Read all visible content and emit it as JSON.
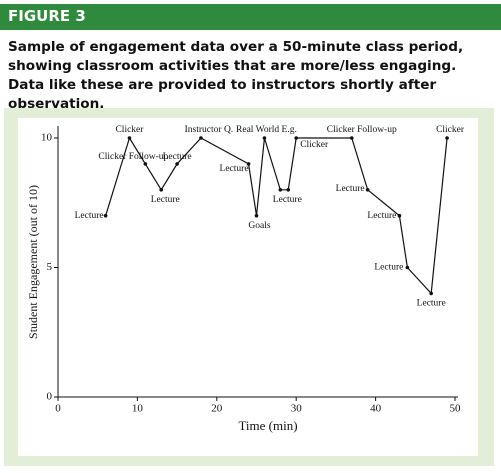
{
  "figure_label": "FIGURE 3",
  "caption": "Sample of engagement data over a 50-minute class period, showing classroom activities that are more/less engaging. Data like these are provided to instructors shortly after observation.",
  "chart_data": {
    "type": "line",
    "x_label": "Time (min)",
    "y_label": "Student Engagement (out of 10)",
    "x": [
      6,
      9,
      11,
      13,
      15,
      18,
      24,
      25,
      26,
      28,
      29,
      30,
      37,
      39,
      43,
      44,
      47,
      49
    ],
    "values": [
      7,
      10,
      9,
      8,
      9,
      10,
      9,
      7,
      10,
      8,
      8,
      10,
      10,
      8,
      7,
      5,
      4,
      10
    ],
    "point_labels": [
      "Lecture",
      "Clicker",
      "Clicker Follow-up",
      "Lecture",
      "Lecture",
      "Instructor Q.",
      "Lecture",
      "Goals",
      "Real World E.g.",
      "Lecture",
      null,
      "Clicker",
      "Clicker Follow-up",
      "Lecture",
      "Lecture",
      "Lecture",
      "Lecture",
      "Clicker"
    ],
    "color": "#111111",
    "xlim": [
      0,
      50
    ],
    "ylim": [
      0,
      10
    ],
    "xticks": [
      0,
      10,
      20,
      30,
      40,
      50
    ],
    "yticks": [
      0,
      5,
      10
    ]
  }
}
